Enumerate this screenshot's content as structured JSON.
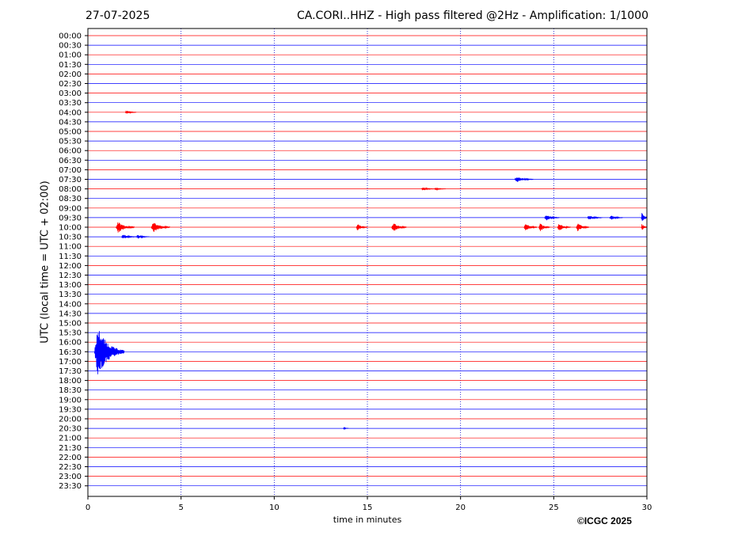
{
  "header": {
    "date": "27-07-2025",
    "title": "CA.CORI..HHZ - High pass filtered @2Hz - Amplification: 1/1000"
  },
  "footer": {
    "xlabel": "time in minutes",
    "ylabel": "UTC (local time = UTC + 02:00)",
    "copyright": "©ICGC 2025"
  },
  "colors": {
    "even_row": "#ff0000",
    "odd_row": "#0000ff",
    "grid": "#0000cc"
  },
  "chart_data": {
    "type": "line",
    "xlabel": "time in minutes",
    "ylabel": "UTC (local time = UTC + 02:00)",
    "xlim": [
      0,
      30
    ],
    "xticks": [
      0,
      5,
      10,
      15,
      20,
      25,
      30
    ],
    "rows": [
      "00:00",
      "00:30",
      "01:00",
      "01:30",
      "02:00",
      "02:30",
      "03:00",
      "03:30",
      "04:00",
      "04:30",
      "05:00",
      "05:30",
      "06:00",
      "06:30",
      "07:00",
      "07:30",
      "08:00",
      "08:30",
      "09:00",
      "09:30",
      "10:00",
      "10:30",
      "11:00",
      "11:30",
      "12:00",
      "12:30",
      "13:00",
      "13:30",
      "14:00",
      "14:30",
      "15:00",
      "15:30",
      "16:00",
      "16:30",
      "17:00",
      "17:30",
      "18:00",
      "18:30",
      "19:00",
      "19:30",
      "20:00",
      "20:30",
      "21:00",
      "21:30",
      "22:00",
      "22:30",
      "23:00",
      "23:30"
    ],
    "grid": "vertical dotted at x ticks",
    "events": [
      {
        "row": "04:00",
        "x": 2.0,
        "amp": 0.2,
        "dur": 0.6
      },
      {
        "row": "07:30",
        "x": 22.9,
        "amp": 0.3,
        "dur": 1.0
      },
      {
        "row": "08:00",
        "x": 17.9,
        "amp": 0.15,
        "dur": 0.8
      },
      {
        "row": "08:00",
        "x": 18.6,
        "amp": 0.12,
        "dur": 0.6
      },
      {
        "row": "09:30",
        "x": 24.5,
        "amp": 0.3,
        "dur": 0.8
      },
      {
        "row": "09:30",
        "x": 26.8,
        "amp": 0.25,
        "dur": 0.8
      },
      {
        "row": "09:30",
        "x": 28.0,
        "amp": 0.25,
        "dur": 0.7
      },
      {
        "row": "09:30",
        "x": 29.7,
        "amp": 0.7,
        "dur": 0.5
      },
      {
        "row": "10:00",
        "x": 1.5,
        "amp": 0.6,
        "dur": 1.0
      },
      {
        "row": "10:00",
        "x": 3.4,
        "amp": 0.6,
        "dur": 1.0
      },
      {
        "row": "10:00",
        "x": 14.4,
        "amp": 0.4,
        "dur": 0.6
      },
      {
        "row": "10:00",
        "x": 16.3,
        "amp": 0.5,
        "dur": 0.8
      },
      {
        "row": "10:00",
        "x": 23.4,
        "amp": 0.5,
        "dur": 0.7
      },
      {
        "row": "10:00",
        "x": 24.2,
        "amp": 0.45,
        "dur": 0.6
      },
      {
        "row": "10:00",
        "x": 25.2,
        "amp": 0.45,
        "dur": 0.7
      },
      {
        "row": "10:00",
        "x": 26.2,
        "amp": 0.45,
        "dur": 0.7
      },
      {
        "row": "10:00",
        "x": 29.7,
        "amp": 0.4,
        "dur": 0.3
      },
      {
        "row": "10:30",
        "x": 1.8,
        "amp": 0.25,
        "dur": 0.8
      },
      {
        "row": "10:30",
        "x": 2.6,
        "amp": 0.2,
        "dur": 0.7
      },
      {
        "row": "16:30",
        "x": 0.35,
        "amp": 2.7,
        "dur": 1.6
      },
      {
        "row": "20:30",
        "x": 13.7,
        "amp": 0.1,
        "dur": 0.3
      }
    ]
  }
}
